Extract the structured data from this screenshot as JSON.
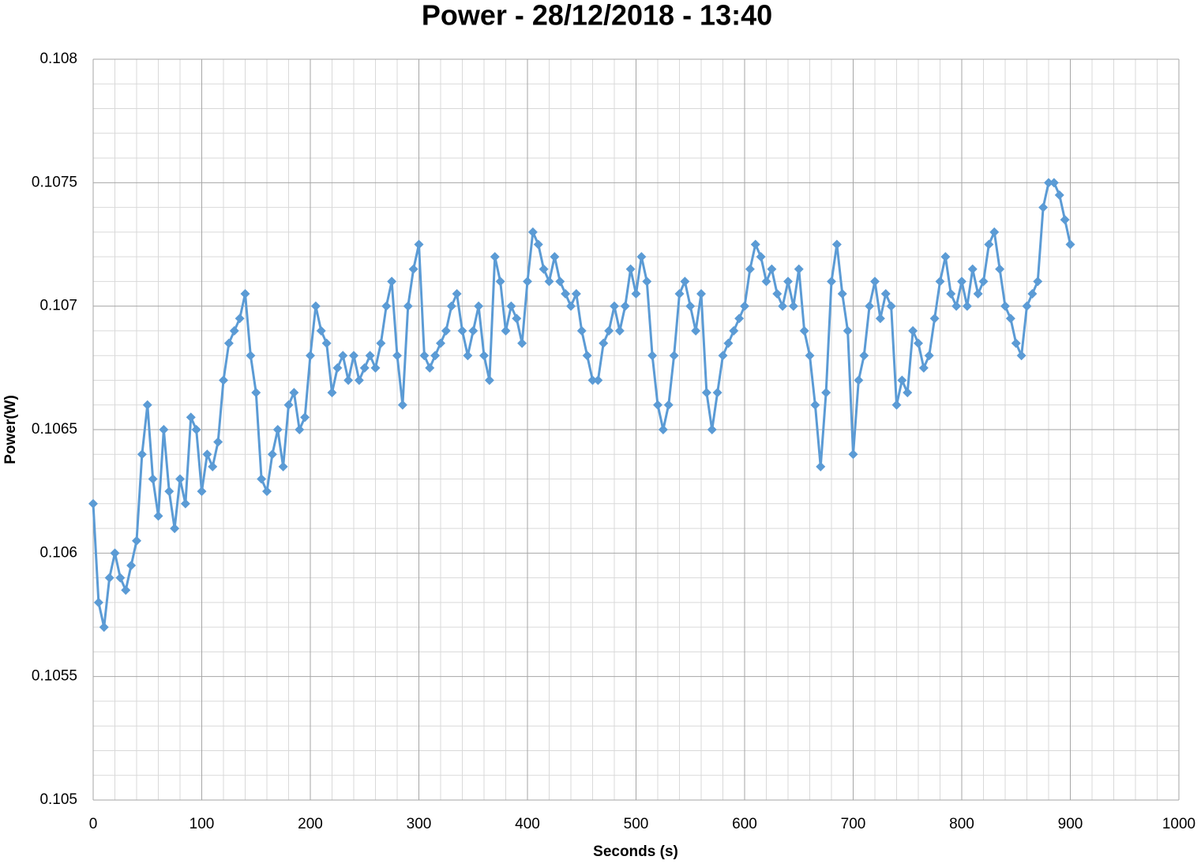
{
  "chart_data": {
    "type": "line",
    "title": "Power - 28/12/2018 - 13:40",
    "x_label": "Seconds (s)",
    "y_label": "Power(W)",
    "xlim": [
      0,
      1000
    ],
    "xticks": [
      0,
      100,
      200,
      300,
      400,
      500,
      600,
      700,
      800,
      900,
      1000
    ],
    "ylim": [
      0.105,
      0.108
    ],
    "yticks": [
      0.105,
      0.1055,
      0.106,
      0.1065,
      0.107,
      0.1075,
      0.108
    ],
    "grid": true,
    "minor_grid": true,
    "marker": "diamond",
    "x": [
      0,
      5,
      10,
      15,
      20,
      25,
      30,
      35,
      40,
      45,
      50,
      55,
      60,
      65,
      70,
      75,
      80,
      85,
      90,
      95,
      100,
      105,
      110,
      115,
      120,
      125,
      130,
      135,
      140,
      145,
      150,
      155,
      160,
      165,
      170,
      175,
      180,
      185,
      190,
      195,
      200,
      205,
      210,
      215,
      220,
      225,
      230,
      235,
      240,
      245,
      250,
      255,
      260,
      265,
      270,
      275,
      280,
      285,
      290,
      295,
      300,
      305,
      310,
      315,
      320,
      325,
      330,
      335,
      340,
      345,
      350,
      355,
      360,
      365,
      370,
      375,
      380,
      385,
      390,
      395,
      400,
      405,
      410,
      415,
      420,
      425,
      430,
      435,
      440,
      445,
      450,
      455,
      460,
      465,
      470,
      475,
      480,
      485,
      490,
      495,
      500,
      505,
      510,
      515,
      520,
      525,
      530,
      535,
      540,
      545,
      550,
      555,
      560,
      565,
      570,
      575,
      580,
      585,
      590,
      595,
      600,
      605,
      610,
      615,
      620,
      625,
      630,
      635,
      640,
      645,
      650,
      655,
      660,
      665,
      670,
      675,
      680,
      685,
      690,
      695,
      700,
      705,
      710,
      715,
      720,
      725,
      730,
      735,
      740,
      745,
      750,
      755,
      760,
      765,
      770,
      775,
      780,
      785,
      790,
      795,
      800,
      805,
      810,
      815,
      820,
      825,
      830,
      835,
      840,
      845,
      850,
      855,
      860,
      865,
      870,
      875,
      880,
      885,
      890,
      895,
      900
    ],
    "series": [
      {
        "color": "#5b9bd5",
        "values": [
          0.1062,
          0.1058,
          0.1057,
          0.1059,
          0.106,
          0.1059,
          0.10585,
          0.10595,
          0.10605,
          0.1064,
          0.1066,
          0.1063,
          0.10615,
          0.1065,
          0.10625,
          0.1061,
          0.1063,
          0.1062,
          0.10655,
          0.1065,
          0.10625,
          0.1064,
          0.10635,
          0.10645,
          0.1067,
          0.10685,
          0.1069,
          0.10695,
          0.10705,
          0.1068,
          0.10665,
          0.1063,
          0.10625,
          0.1064,
          0.1065,
          0.10635,
          0.1066,
          0.10665,
          0.1065,
          0.10655,
          0.1068,
          0.107,
          0.1069,
          0.10685,
          0.10665,
          0.10675,
          0.1068,
          0.1067,
          0.1068,
          0.1067,
          0.10675,
          0.1068,
          0.10675,
          0.10685,
          0.107,
          0.1071,
          0.1068,
          0.1066,
          0.107,
          0.10715,
          0.10725,
          0.1068,
          0.10675,
          0.1068,
          0.10685,
          0.1069,
          0.107,
          0.10705,
          0.1069,
          0.1068,
          0.1069,
          0.107,
          0.1068,
          0.1067,
          0.1072,
          0.1071,
          0.1069,
          0.107,
          0.10695,
          0.10685,
          0.1071,
          0.1073,
          0.10725,
          0.10715,
          0.1071,
          0.1072,
          0.1071,
          0.10705,
          0.107,
          0.10705,
          0.1069,
          0.1068,
          0.1067,
          0.1067,
          0.10685,
          0.1069,
          0.107,
          0.1069,
          0.107,
          0.10715,
          0.10705,
          0.1072,
          0.1071,
          0.1068,
          0.1066,
          0.1065,
          0.1066,
          0.1068,
          0.10705,
          0.1071,
          0.107,
          0.1069,
          0.10705,
          0.10665,
          0.1065,
          0.10665,
          0.1068,
          0.10685,
          0.1069,
          0.10695,
          0.107,
          0.10715,
          0.10725,
          0.1072,
          0.1071,
          0.10715,
          0.10705,
          0.107,
          0.1071,
          0.107,
          0.10715,
          0.1069,
          0.1068,
          0.1066,
          0.10635,
          0.10665,
          0.1071,
          0.10725,
          0.10705,
          0.1069,
          0.1064,
          0.1067,
          0.1068,
          0.107,
          0.1071,
          0.10695,
          0.10705,
          0.107,
          0.1066,
          0.1067,
          0.10665,
          0.1069,
          0.10685,
          0.10675,
          0.1068,
          0.10695,
          0.1071,
          0.1072,
          0.10705,
          0.107,
          0.1071,
          0.107,
          0.10715,
          0.10705,
          0.1071,
          0.10725,
          0.1073,
          0.10715,
          0.107,
          0.10695,
          0.10685,
          0.1068,
          0.107,
          0.10705,
          0.1071,
          0.1074,
          0.1075,
          0.1075,
          0.10745,
          0.10735,
          0.10725
        ]
      }
    ]
  }
}
